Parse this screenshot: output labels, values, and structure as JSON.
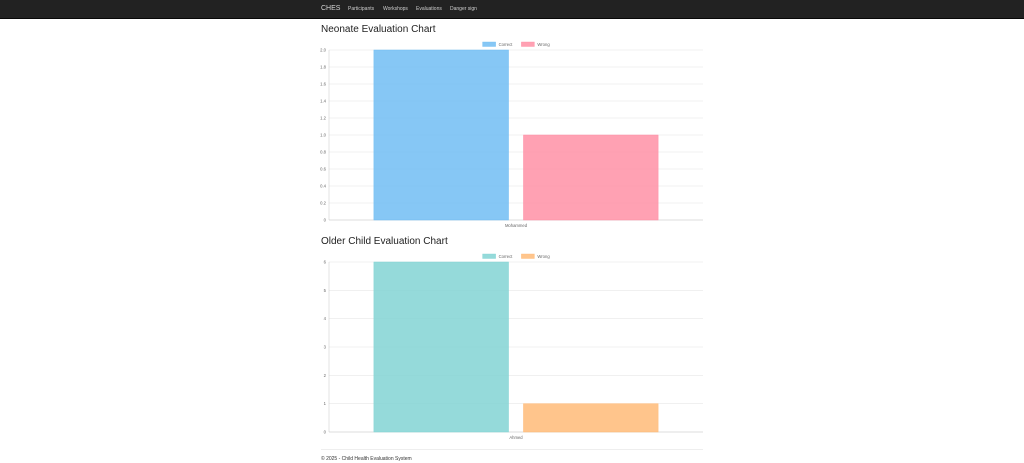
{
  "navbar": {
    "brand": "CHES",
    "items": [
      {
        "label": "Participants"
      },
      {
        "label": "Workshops"
      },
      {
        "label": "Evaluations"
      },
      {
        "label": "Danger sign"
      }
    ]
  },
  "charts": [
    {
      "heading": "Neonate Evaluation Chart"
    },
    {
      "heading": "Older Child Evaluation Chart"
    }
  ],
  "chart_data": [
    {
      "type": "bar",
      "categories": [
        "Mohammed"
      ],
      "series": [
        {
          "name": "Correct",
          "values": [
            2
          ],
          "color": "#71bdf3"
        },
        {
          "name": "Wrong",
          "values": [
            1
          ],
          "color": "#ff90a6"
        }
      ],
      "ylim": [
        0,
        2
      ],
      "yticks": [
        "0",
        "0.2",
        "0.4",
        "0.6",
        "0.8",
        "1.0",
        "1.2",
        "1.4",
        "1.6",
        "1.8",
        "2.0"
      ],
      "legend": "top-center",
      "grid": true
    },
    {
      "type": "bar",
      "categories": [
        "Ahmed"
      ],
      "series": [
        {
          "name": "Correct",
          "values": [
            6
          ],
          "color": "#83d4d4"
        },
        {
          "name": "Wrong",
          "values": [
            1
          ],
          "color": "#ffbb78"
        }
      ],
      "ylim": [
        0,
        6
      ],
      "yticks": [
        "0",
        "1",
        "2",
        "3",
        "4",
        "5",
        "6"
      ],
      "legend": "top-center",
      "grid": true
    }
  ],
  "footer": {
    "text": "© 2025 - Child Health Evaluation System"
  }
}
